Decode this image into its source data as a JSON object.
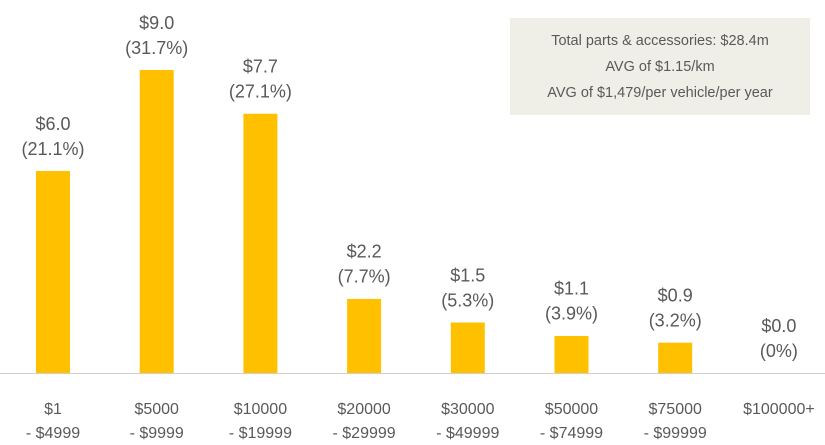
{
  "chart_data": {
    "type": "bar",
    "categories": [
      [
        "$1",
        "- $4999"
      ],
      [
        "$5000",
        "- $9999"
      ],
      [
        "$10000",
        "- $19999"
      ],
      [
        "$20000",
        "- $29999"
      ],
      [
        "$30000",
        "- $49999"
      ],
      [
        "$50000",
        "- $74999"
      ],
      [
        "$75000",
        "- $99999"
      ],
      [
        "$100000+"
      ]
    ],
    "values": [
      6.0,
      9.0,
      7.7,
      2.2,
      1.5,
      1.1,
      0.9,
      0.0
    ],
    "value_labels": [
      "$6.0",
      "$9.0",
      "$7.7",
      "$2.2",
      "$1.5",
      "$1.1",
      "$0.9",
      "$0.0"
    ],
    "share_labels": [
      "(21.1%)",
      "(31.7%)",
      "(27.1%)",
      "(7.7%)",
      "(5.3%)",
      "(3.9%)",
      "(3.2%)",
      "(0%)"
    ],
    "color": "#ffc000",
    "annotation": [
      "Total parts & accessories: $28.4m",
      "AVG of $1.15/km",
      "AVG of $1,479/per vehicle/per year"
    ]
  }
}
